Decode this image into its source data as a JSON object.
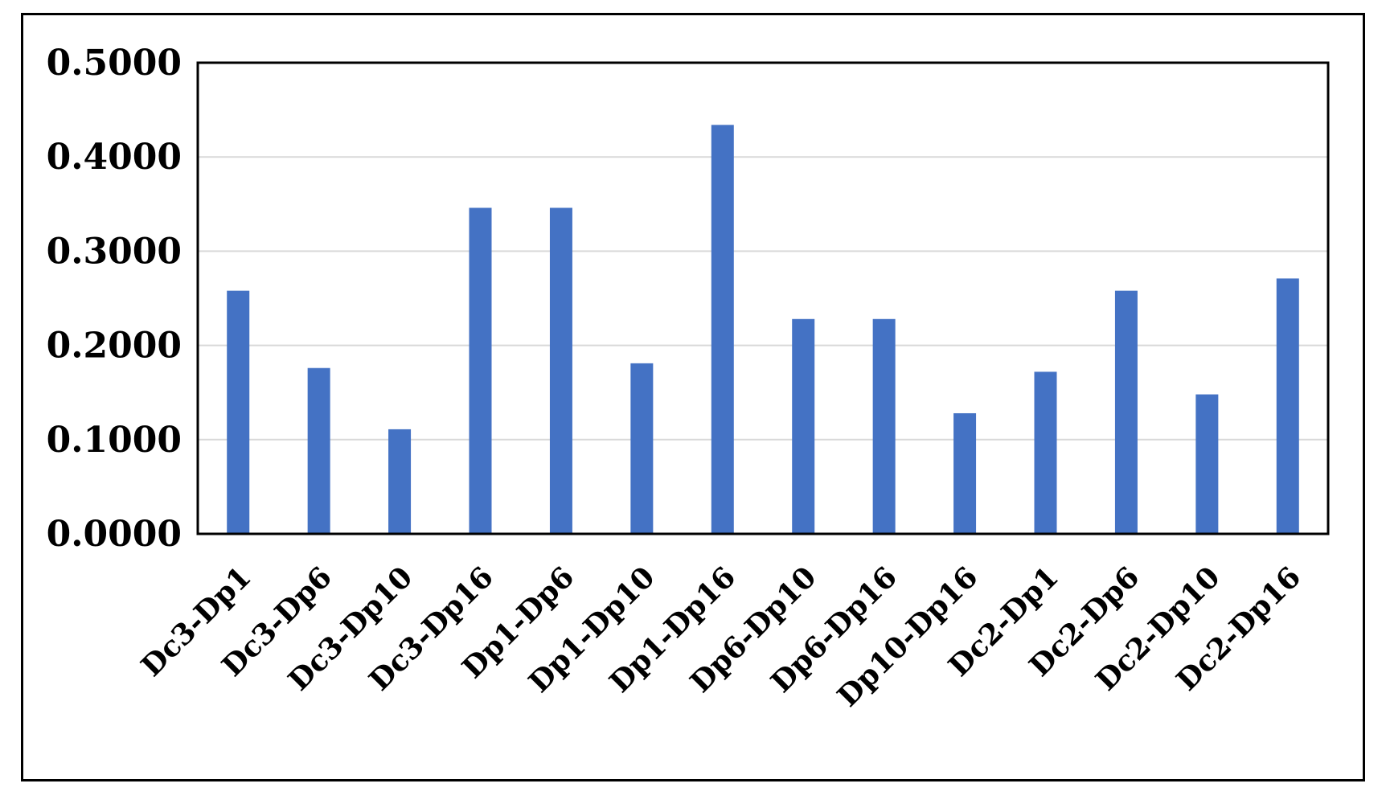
{
  "chart_data": {
    "type": "bar",
    "title": "",
    "xlabel": "",
    "ylabel": "",
    "categories": [
      "Dc3-Dp1",
      "Dc3-Dp6",
      "Dc3-Dp10",
      "Dc3-Dp16",
      "Dp1-Dp6",
      "Dp1-Dp10",
      "Dp1-Dp16",
      "Dp6-Dp10",
      "Dp6-Dp16",
      "Dp10-Dp16",
      "Dc2-Dp1",
      "Dc2-Dp6",
      "Dc2-Dp10",
      "Dc2-Dp16"
    ],
    "values": [
      0.258,
      0.176,
      0.111,
      0.346,
      0.346,
      0.181,
      0.434,
      0.228,
      0.228,
      0.128,
      0.172,
      0.258,
      0.148,
      0.271
    ],
    "ylim": [
      0,
      0.5
    ],
    "yticks": [
      "0.0000",
      "0.1000",
      "0.2000",
      "0.3000",
      "0.4000",
      "0.5000"
    ],
    "ytick_values": [
      0,
      0.1,
      0.2,
      0.3,
      0.4,
      0.5
    ],
    "grid": true,
    "legend": "none",
    "bar_color": "#4472c4",
    "grid_color": "#d9d9d9",
    "axis_color": "#000000"
  }
}
